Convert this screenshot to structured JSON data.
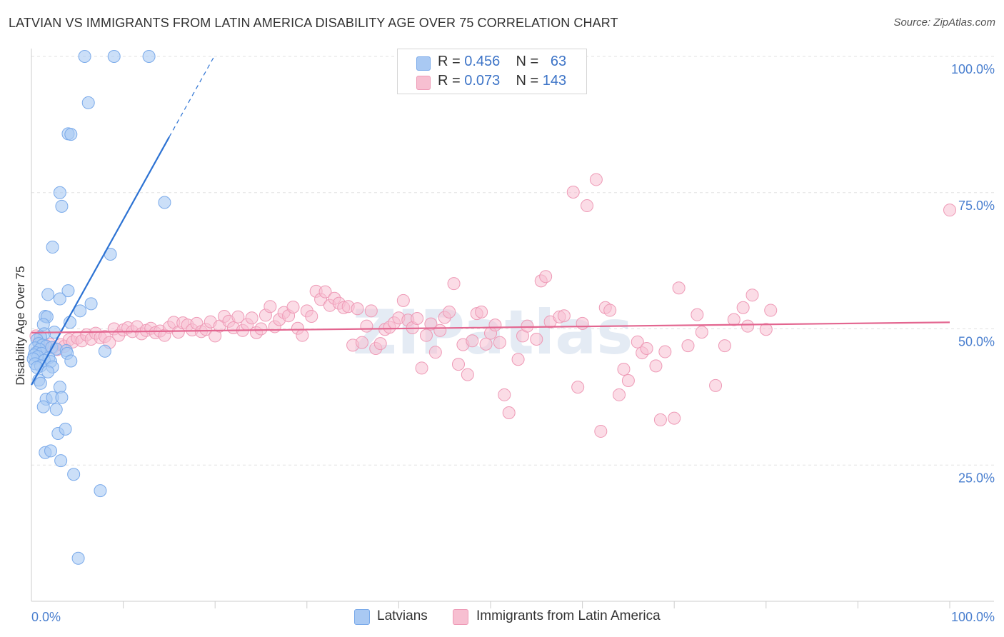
{
  "header": {
    "title": "LATVIAN VS IMMIGRANTS FROM LATIN AMERICA DISABILITY AGE OVER 75 CORRELATION CHART",
    "source": "Source: ZipAtlas.com"
  },
  "legend_top": {
    "rows": [
      {
        "r_label": "R =",
        "r_value": "0.456",
        "n_label": "N =",
        "n_value": "63"
      },
      {
        "r_label": "R =",
        "r_value": "0.073",
        "n_label": "N =",
        "n_value": "143"
      }
    ]
  },
  "legend_bottom": {
    "items": [
      {
        "label": "Latvians"
      },
      {
        "label": "Immigrants from Latin America"
      }
    ]
  },
  "watermark": "ZIPatlas",
  "colors": {
    "blue_fill": "#a9c9f3",
    "blue_stroke": "#7aaaea",
    "blue_line": "#2c72d3",
    "pink_fill": "#f7bfd1",
    "pink_stroke": "#ee9ab6",
    "pink_line": "#e36690",
    "tick_text": "#4a7fcf",
    "grid": "#e2e2e2"
  },
  "chart_data": {
    "type": "scatter",
    "title": "LATVIAN VS IMMIGRANTS FROM LATIN AMERICA DISABILITY AGE OVER 75 CORRELATION CHART",
    "xlabel": "",
    "ylabel": "Disability Age Over 75",
    "xlim": [
      0,
      100
    ],
    "ylim": [
      0,
      102
    ],
    "x_tick_labels": [
      "0.0%",
      "100.0%"
    ],
    "y_ticks": [
      25,
      50,
      75,
      100
    ],
    "y_tick_labels": [
      "25.0%",
      "50.0%",
      "75.0%",
      "100.0%"
    ],
    "series": [
      {
        "name": "Latvians",
        "R": 0.456,
        "N": 63,
        "trend": {
          "x": [
            0,
            15
          ],
          "y": [
            39.7,
            85.2
          ],
          "dashed_to": [
            20,
            100.3
          ]
        },
        "points": [
          [
            5.8,
            100
          ],
          [
            9.0,
            100
          ],
          [
            12.8,
            100
          ],
          [
            6.2,
            91.5
          ],
          [
            4.0,
            85.8
          ],
          [
            4.3,
            85.7
          ],
          [
            3.1,
            75.0
          ],
          [
            3.3,
            72.5
          ],
          [
            14.5,
            73.2
          ],
          [
            2.3,
            65.0
          ],
          [
            8.6,
            63.7
          ],
          [
            1.8,
            56.3
          ],
          [
            4.0,
            57.0
          ],
          [
            3.1,
            55.5
          ],
          [
            6.5,
            54.6
          ],
          [
            5.3,
            53.3
          ],
          [
            1.5,
            52.3
          ],
          [
            1.7,
            52.2
          ],
          [
            4.2,
            51.2
          ],
          [
            1.3,
            50.8
          ],
          [
            2.5,
            49.4
          ],
          [
            1.4,
            49.1
          ],
          [
            1.0,
            48.5
          ],
          [
            0.6,
            48.0
          ],
          [
            0.8,
            47.3
          ],
          [
            1.2,
            47.0
          ],
          [
            1.6,
            46.8
          ],
          [
            2.2,
            46.6
          ],
          [
            0.4,
            46.5
          ],
          [
            0.9,
            46.2
          ],
          [
            2.7,
            46.3
          ],
          [
            3.8,
            46.0
          ],
          [
            8.0,
            45.9
          ],
          [
            0.5,
            45.6
          ],
          [
            1.1,
            45.5
          ],
          [
            0.3,
            45.2
          ],
          [
            0.7,
            44.9
          ],
          [
            1.9,
            44.7
          ],
          [
            3.9,
            45.5
          ],
          [
            0.2,
            44.5
          ],
          [
            1.4,
            44.2
          ],
          [
            2.1,
            44.0
          ],
          [
            4.3,
            44.1
          ],
          [
            0.4,
            43.6
          ],
          [
            1.0,
            43.2
          ],
          [
            0.6,
            42.9
          ],
          [
            2.3,
            43.0
          ],
          [
            1.8,
            42.1
          ],
          [
            0.8,
            40.6
          ],
          [
            1.0,
            40.0
          ],
          [
            3.1,
            39.3
          ],
          [
            1.6,
            37.1
          ],
          [
            2.3,
            37.4
          ],
          [
            3.3,
            37.4
          ],
          [
            1.3,
            35.7
          ],
          [
            2.7,
            35.2
          ],
          [
            2.9,
            30.8
          ],
          [
            3.7,
            31.6
          ],
          [
            1.5,
            27.3
          ],
          [
            2.1,
            27.6
          ],
          [
            3.2,
            25.8
          ],
          [
            4.6,
            23.3
          ],
          [
            7.5,
            20.3
          ],
          [
            5.1,
            7.9
          ]
        ]
      },
      {
        "name": "Immigrants from Latin America",
        "R": 0.073,
        "N": 143,
        "trend": {
          "x": [
            0,
            100
          ],
          "y": [
            49.3,
            51.2
          ]
        },
        "points": [
          [
            0.5,
            48.7
          ],
          [
            0.8,
            47.5
          ],
          [
            1.1,
            46.4
          ],
          [
            1.5,
            47.0
          ],
          [
            2.0,
            47.2
          ],
          [
            2.3,
            46.5
          ],
          [
            2.8,
            46.2
          ],
          [
            3.2,
            47.1
          ],
          [
            3.6,
            46.8
          ],
          [
            4.1,
            48.0
          ],
          [
            4.5,
            47.6
          ],
          [
            5.0,
            48.3
          ],
          [
            5.5,
            47.8
          ],
          [
            6.0,
            48.9
          ],
          [
            6.5,
            48.1
          ],
          [
            7.0,
            49.2
          ],
          [
            7.5,
            48.4
          ],
          [
            8.0,
            48.6
          ],
          [
            8.5,
            47.5
          ],
          [
            9.0,
            50.0
          ],
          [
            9.5,
            48.8
          ],
          [
            10.0,
            49.8
          ],
          [
            10.5,
            50.2
          ],
          [
            11.0,
            49.5
          ],
          [
            11.5,
            50.4
          ],
          [
            12.0,
            49.1
          ],
          [
            12.5,
            49.7
          ],
          [
            13.0,
            50.1
          ],
          [
            13.5,
            49.3
          ],
          [
            14.0,
            49.6
          ],
          [
            14.5,
            48.8
          ],
          [
            15.0,
            50.3
          ],
          [
            15.5,
            51.2
          ],
          [
            16.0,
            49.4
          ],
          [
            16.5,
            51.1
          ],
          [
            17.0,
            50.7
          ],
          [
            17.5,
            49.8
          ],
          [
            18.0,
            51.0
          ],
          [
            18.5,
            49.5
          ],
          [
            19.0,
            49.9
          ],
          [
            19.5,
            51.3
          ],
          [
            20.0,
            48.7
          ],
          [
            20.5,
            50.5
          ],
          [
            21.0,
            52.3
          ],
          [
            21.5,
            51.4
          ],
          [
            22.0,
            50.2
          ],
          [
            22.5,
            52.2
          ],
          [
            23.0,
            49.7
          ],
          [
            23.5,
            50.8
          ],
          [
            24.0,
            52.0
          ],
          [
            24.5,
            49.3
          ],
          [
            25.0,
            50.0
          ],
          [
            25.5,
            52.5
          ],
          [
            26.0,
            54.1
          ],
          [
            26.5,
            50.4
          ],
          [
            27.0,
            51.7
          ],
          [
            27.5,
            53.0
          ],
          [
            28.0,
            52.4
          ],
          [
            28.5,
            54.0
          ],
          [
            29.0,
            50.1
          ],
          [
            29.5,
            48.8
          ],
          [
            30.0,
            53.3
          ],
          [
            30.5,
            52.3
          ],
          [
            31.0,
            56.9
          ],
          [
            31.5,
            55.4
          ],
          [
            32.0,
            56.8
          ],
          [
            32.5,
            54.3
          ],
          [
            33.0,
            55.6
          ],
          [
            33.5,
            54.7
          ],
          [
            34.0,
            53.9
          ],
          [
            34.5,
            54.1
          ],
          [
            35.0,
            47.0
          ],
          [
            35.5,
            53.7
          ],
          [
            36.0,
            47.5
          ],
          [
            36.5,
            50.5
          ],
          [
            37.0,
            53.3
          ],
          [
            37.5,
            46.4
          ],
          [
            38.0,
            47.3
          ],
          [
            38.5,
            49.9
          ],
          [
            39.0,
            50.3
          ],
          [
            39.5,
            51.1
          ],
          [
            40.0,
            52.0
          ],
          [
            40.5,
            55.2
          ],
          [
            41.0,
            51.6
          ],
          [
            41.5,
            50.2
          ],
          [
            42.0,
            51.9
          ],
          [
            42.5,
            42.8
          ],
          [
            43.0,
            48.8
          ],
          [
            43.5,
            50.9
          ],
          [
            44.0,
            45.7
          ],
          [
            44.5,
            49.7
          ],
          [
            45.0,
            52.1
          ],
          [
            45.5,
            53.1
          ],
          [
            46.0,
            58.3
          ],
          [
            46.5,
            43.5
          ],
          [
            47.0,
            47.1
          ],
          [
            47.5,
            41.6
          ],
          [
            48.0,
            47.8
          ],
          [
            48.5,
            52.8
          ],
          [
            49.0,
            53.1
          ],
          [
            49.5,
            47.2
          ],
          [
            50.0,
            49.2
          ],
          [
            50.5,
            50.7
          ],
          [
            51.0,
            47.5
          ],
          [
            51.5,
            37.9
          ],
          [
            52.0,
            34.6
          ],
          [
            53.0,
            44.4
          ],
          [
            53.5,
            48.7
          ],
          [
            54.0,
            50.5
          ],
          [
            55.0,
            48.1
          ],
          [
            55.5,
            58.8
          ],
          [
            56.0,
            59.6
          ],
          [
            56.5,
            51.3
          ],
          [
            57.5,
            52.2
          ],
          [
            58.0,
            52.4
          ],
          [
            59.0,
            75.1
          ],
          [
            59.5,
            39.3
          ],
          [
            60.0,
            51.0
          ],
          [
            60.5,
            72.6
          ],
          [
            61.5,
            77.4
          ],
          [
            62.0,
            31.2
          ],
          [
            62.5,
            53.9
          ],
          [
            63.0,
            53.4
          ],
          [
            64.0,
            37.9
          ],
          [
            64.5,
            42.6
          ],
          [
            65.0,
            40.5
          ],
          [
            66.0,
            47.6
          ],
          [
            66.5,
            45.6
          ],
          [
            67.0,
            46.4
          ],
          [
            68.0,
            43.2
          ],
          [
            68.5,
            33.3
          ],
          [
            69.0,
            45.8
          ],
          [
            70.0,
            33.6
          ],
          [
            70.5,
            57.5
          ],
          [
            71.5,
            46.9
          ],
          [
            72.5,
            52.6
          ],
          [
            73.0,
            49.4
          ],
          [
            74.5,
            39.6
          ],
          [
            75.5,
            46.9
          ],
          [
            76.5,
            51.7
          ],
          [
            77.5,
            53.9
          ],
          [
            78.5,
            56.2
          ],
          [
            78.0,
            50.5
          ],
          [
            80.0,
            49.9
          ],
          [
            80.5,
            53.4
          ],
          [
            100.0,
            71.8
          ]
        ]
      }
    ]
  }
}
